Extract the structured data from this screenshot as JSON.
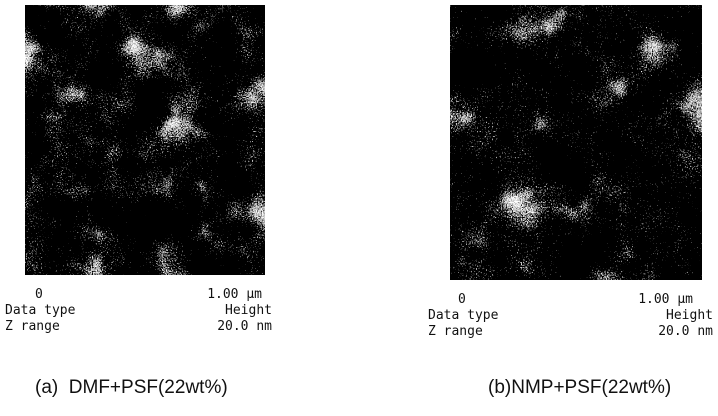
{
  "panels": [
    {
      "scale_start": "0",
      "scale_end": "1.00 μm",
      "data_type_label": "Data type",
      "data_type_value": "Height",
      "z_range_label": "Z range",
      "z_range_value": "20.0 nm",
      "caption": "(a)  DMF+PSF(22wt%)"
    },
    {
      "scale_start": "0",
      "scale_end": "1.00 μm",
      "data_type_label": "Data type",
      "data_type_value": "Height",
      "z_range_label": "Z range",
      "z_range_value": "20.0 nm",
      "caption": "(b)NMP+PSF(22wt%)"
    }
  ]
}
